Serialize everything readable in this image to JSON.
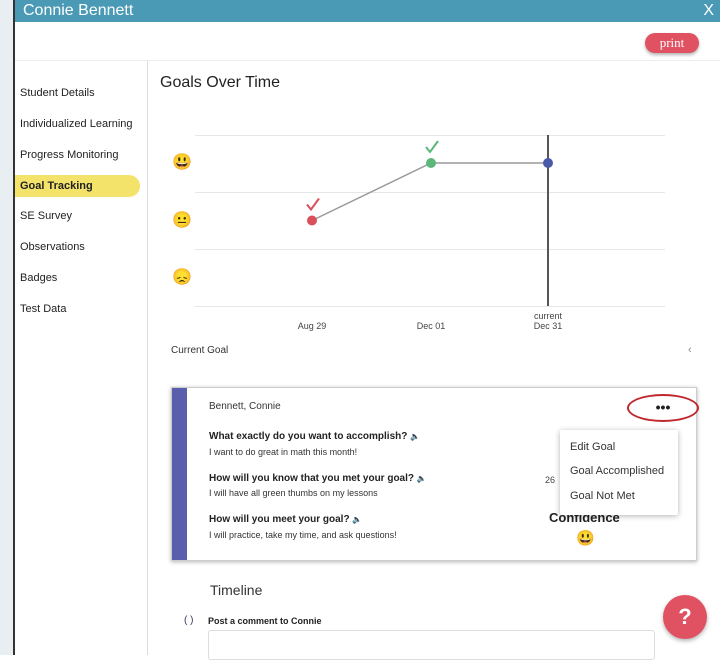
{
  "window": {
    "title": "Connie Bennett",
    "close_label": "X"
  },
  "toolbar": {
    "print_label": "print"
  },
  "sidebar": {
    "items": [
      {
        "label": "Student Details"
      },
      {
        "label": "Individualized Learning"
      },
      {
        "label": "Progress Monitoring"
      },
      {
        "label": "Goal Tracking",
        "active": true
      },
      {
        "label": "SE Survey"
      },
      {
        "label": "Observations"
      },
      {
        "label": "Badges"
      },
      {
        "label": "Test Data"
      }
    ]
  },
  "main": {
    "title": "Goals Over Time",
    "current_goal_label": "Current Goal",
    "chevron": "‹"
  },
  "chart_data": {
    "type": "line",
    "title": "Goals Over Time",
    "y_levels": [
      {
        "value": 3,
        "icon": "grinning-face-icon",
        "glyph": "😃"
      },
      {
        "value": 2,
        "icon": "neutral-face-icon",
        "glyph": "😐"
      },
      {
        "value": 1,
        "icon": "sad-face-icon",
        "glyph": "😞"
      }
    ],
    "ylim": [
      0.5,
      3.5
    ],
    "points": [
      {
        "x": "Aug 29",
        "y": 2,
        "color": "#d9505a",
        "check": true,
        "check_color": "#d9505a"
      },
      {
        "x": "Dec 01",
        "y": 3,
        "color": "#5cb87a",
        "check": true,
        "check_color": "#5cb87a"
      },
      {
        "x": "Dec 31",
        "x_sub": "current",
        "y": 3,
        "color": "#4a5aa8",
        "check": false
      }
    ],
    "current_marker": "Dec 31",
    "grid": true
  },
  "goal_card": {
    "student": "Bennett, Connie",
    "questions": [
      {
        "q": "What exactly do you want to accomplish?",
        "a": "I want to do great in math this month!"
      },
      {
        "q": "How will you know that you met your goal?",
        "a": "I will have all green thumbs on my lessons"
      },
      {
        "q": "How will you meet your goal?",
        "a": "I will practice, take my time, and ask questions!"
      }
    ],
    "speaker_glyph": "🔈",
    "more_label": "•••",
    "partial_text": "26",
    "confidence_label": "Confidence",
    "confidence_glyph": "😃",
    "accent": "#5a5fad"
  },
  "menu": {
    "items": [
      "Edit Goal",
      "Goal Accomplished",
      "Goal Not Met"
    ]
  },
  "timeline": {
    "title": "Timeline",
    "post_label": "Post a comment to Connie"
  },
  "help": {
    "label": "?"
  }
}
